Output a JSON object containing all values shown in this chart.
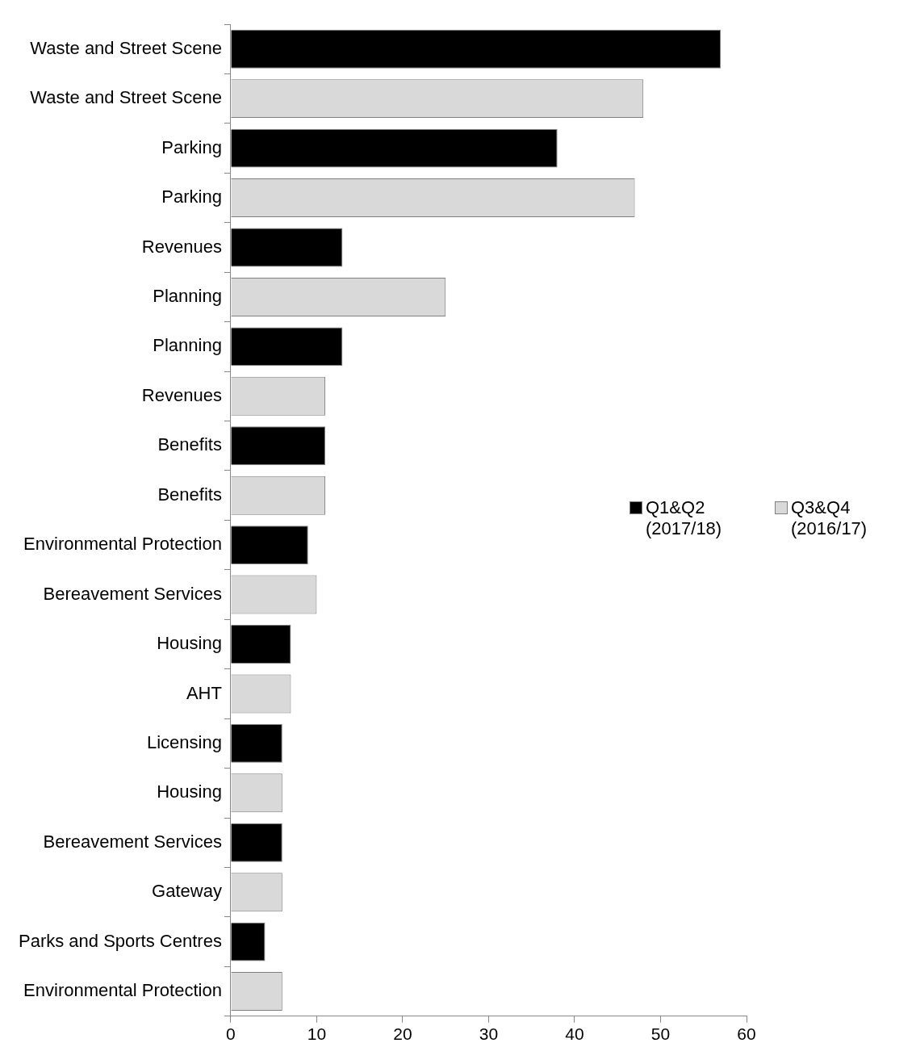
{
  "chart_data": {
    "type": "bar",
    "orientation": "horizontal",
    "categories": [
      "Waste and Street Scene",
      "Waste and Street Scene",
      "Parking",
      "Parking",
      "Revenues",
      "Planning",
      "Planning",
      "Revenues",
      "Benefits",
      "Benefits",
      "Environmental Protection",
      "Bereavement Services",
      "Housing",
      "AHT",
      "Licensing",
      "Housing",
      "Bereavement Services",
      "Gateway",
      "Parks and Sports Centres",
      "Environmental Protection"
    ],
    "series": [
      {
        "name": "Q1&Q2 (2017/18)",
        "color": "#000000",
        "values": [
          57,
          null,
          38,
          null,
          13,
          null,
          13,
          null,
          11,
          null,
          9,
          null,
          7,
          null,
          6,
          null,
          6,
          null,
          4,
          null
        ]
      },
      {
        "name": "Q3&Q4 (2016/17)",
        "color": "#d9d9d9",
        "values": [
          null,
          48,
          null,
          47,
          null,
          25,
          null,
          11,
          null,
          11,
          null,
          10,
          null,
          7,
          null,
          6,
          null,
          6,
          null,
          6
        ]
      }
    ],
    "xlim": [
      0,
      60
    ],
    "xticks": [
      0,
      10,
      20,
      30,
      40,
      50,
      60
    ],
    "grid": false,
    "legend": "right"
  }
}
